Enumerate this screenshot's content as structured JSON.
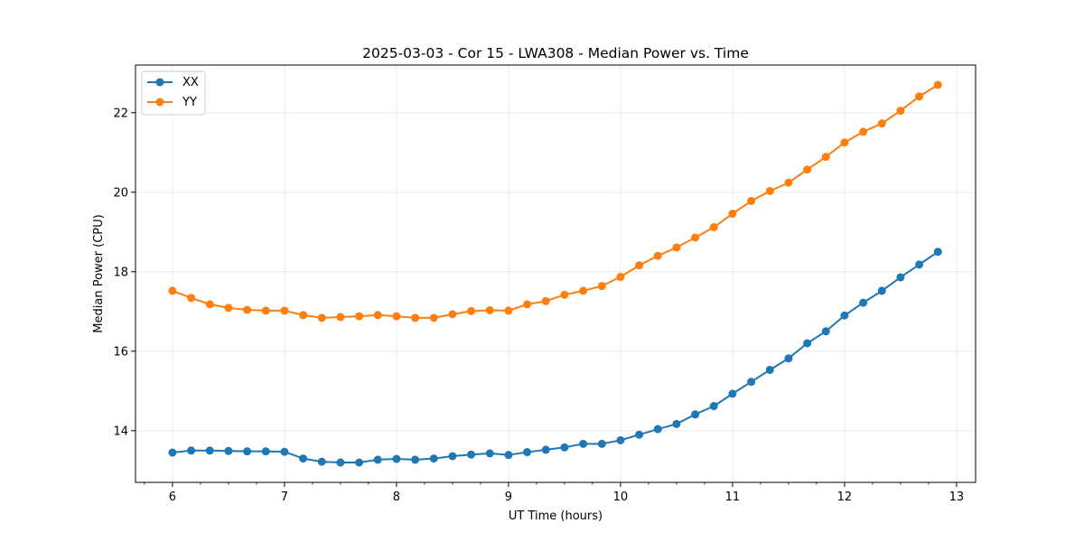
{
  "chart_data": {
    "type": "line",
    "title": "2025-03-03 - Cor 15 - LWA308 - Median Power vs. Time",
    "xlabel": "UT Time (hours)",
    "ylabel": "Median Power (CPU)",
    "xlim": [
      5.67,
      13.17
    ],
    "ylim": [
      12.7,
      23.2
    ],
    "xticks": [
      6,
      7,
      8,
      9,
      10,
      11,
      12,
      13
    ],
    "yticks": [
      14,
      16,
      18,
      20,
      22
    ],
    "grid": true,
    "legend_position": "top-left",
    "x": [
      6.0,
      6.1667,
      6.3333,
      6.5,
      6.6667,
      6.8333,
      7.0,
      7.1667,
      7.3333,
      7.5,
      7.6667,
      7.8333,
      8.0,
      8.1667,
      8.3333,
      8.5,
      8.6667,
      8.8333,
      9.0,
      9.1667,
      9.3333,
      9.5,
      9.6667,
      9.8333,
      10.0,
      10.1667,
      10.3333,
      10.5,
      10.6667,
      10.8333,
      11.0,
      11.1667,
      11.3333,
      11.5,
      11.6667,
      11.8333,
      12.0,
      12.1667,
      12.3333,
      12.5,
      12.6667,
      12.8333
    ],
    "series": [
      {
        "name": "XX",
        "color": "#1f77b4",
        "values": [
          13.45,
          13.5,
          13.5,
          13.49,
          13.48,
          13.48,
          13.47,
          13.3,
          13.22,
          13.2,
          13.2,
          13.27,
          13.29,
          13.27,
          13.3,
          13.36,
          13.4,
          13.43,
          13.39,
          13.46,
          13.52,
          13.58,
          13.67,
          13.67,
          13.76,
          13.9,
          14.04,
          14.17,
          14.41,
          14.62,
          14.93,
          15.23,
          15.53,
          15.82,
          16.2,
          16.5,
          16.9,
          17.22,
          17.52,
          17.86,
          18.18,
          18.5
        ]
      },
      {
        "name": "YY",
        "color": "#ff7f0e",
        "values": [
          17.52,
          17.34,
          17.18,
          17.09,
          17.04,
          17.02,
          17.02,
          16.91,
          16.84,
          16.86,
          16.88,
          16.91,
          16.88,
          16.84,
          16.84,
          16.93,
          17.01,
          17.03,
          17.02,
          17.18,
          17.26,
          17.42,
          17.52,
          17.64,
          17.87,
          18.16,
          18.4,
          18.61,
          18.86,
          19.12,
          19.46,
          19.78,
          20.03,
          20.24,
          20.57,
          20.89,
          21.25,
          21.52,
          21.73,
          22.05,
          22.41,
          22.7
        ]
      }
    ]
  }
}
